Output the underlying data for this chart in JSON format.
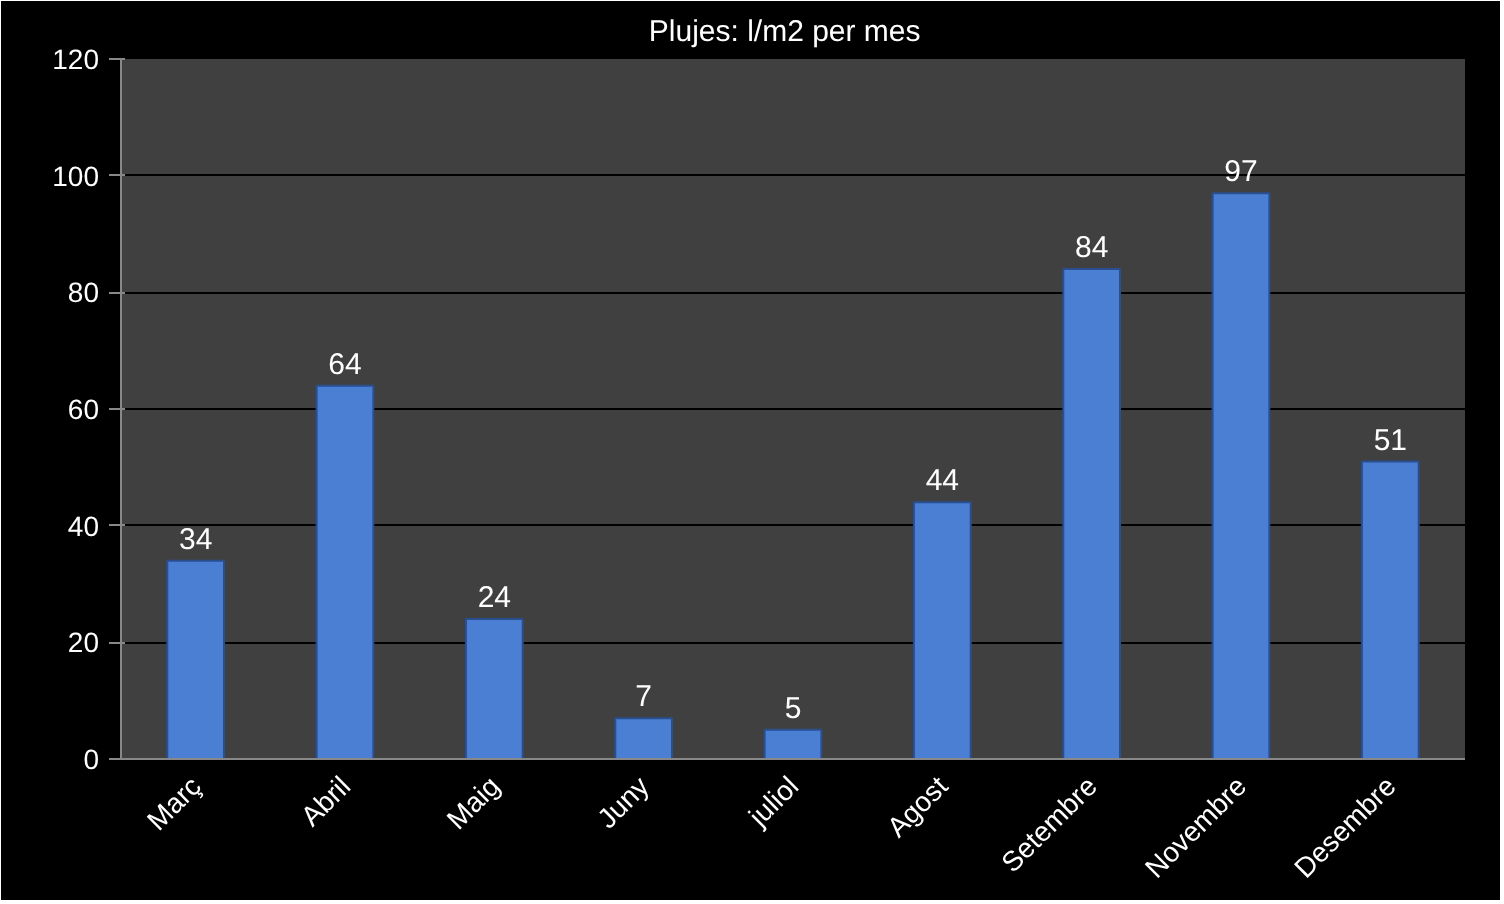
{
  "chart_data": {
    "type": "bar",
    "title": "Plujes: l/m2  per  mes",
    "categories": [
      "Març",
      "Abril",
      "Maig",
      "Juny",
      "juliol",
      "Agost",
      "Setembre",
      "Novembre",
      "Desembre"
    ],
    "values": [
      34,
      64,
      24,
      7,
      5,
      44,
      84,
      97,
      51
    ],
    "color": "#4a7fd4",
    "ylim": [
      0,
      120
    ],
    "yticks": [
      0,
      20,
      40,
      60,
      80,
      100,
      120
    ],
    "grid": "y",
    "data_labels": true
  }
}
